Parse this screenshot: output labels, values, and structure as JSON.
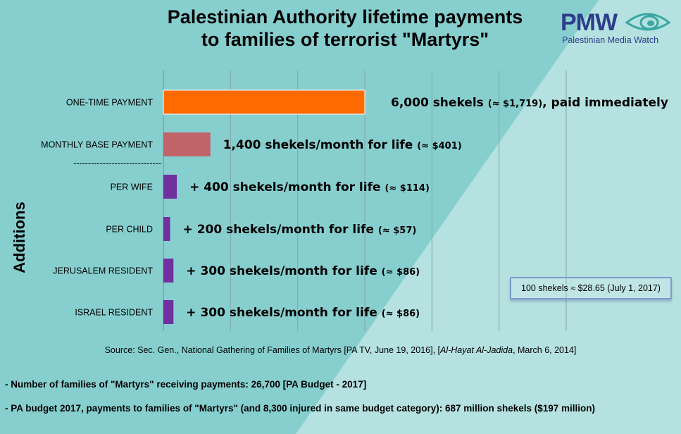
{
  "title": {
    "line1": "Palestinian Authority lifetime payments",
    "line2": "to families of terrorist \"Martyrs\""
  },
  "logo": {
    "name": "PMW",
    "subtitle": "Palestinian Media Watch",
    "icon": "eye-icon"
  },
  "colors": {
    "background_left": "#87cfcf",
    "background_right": "#b5e1e1",
    "one_time": "#ff6a00",
    "monthly_base": "#c0646a",
    "additions": "#7030a0",
    "logo": "#2e3d8c"
  },
  "chart_data": {
    "type": "bar",
    "orientation": "horizontal",
    "categories": [
      "ONE-TIME PAYMENT",
      "MONTHLY BASE PAYMENT",
      "PER WIFE",
      "PER CHILD",
      "JERUSALEM RESIDENT",
      "ISRAEL RESIDENT"
    ],
    "values": [
      6000,
      1400,
      400,
      200,
      300,
      300
    ],
    "labels": [
      {
        "main": "6,000 shekels",
        "small": "(≈ $1,719)",
        "tail": ", paid immediately"
      },
      {
        "main": "1,400 shekels/month for life",
        "small": "(≈ $401)",
        "tail": ""
      },
      {
        "main": "+ 400 shekels/month for life",
        "small": "(≈ $114)",
        "tail": ""
      },
      {
        "main": "+ 200 shekels/month for life",
        "small": "(≈ $57)",
        "tail": ""
      },
      {
        "main": "+ 300 shekels/month for life",
        "small": "(≈ $86)",
        "tail": ""
      },
      {
        "main": "+ 300 shekels/month for life",
        "small": "(≈ $86)",
        "tail": ""
      }
    ],
    "ylabel": "Additions",
    "separator": "------------------------------",
    "xlim": [
      0,
      12000
    ],
    "grid": "vertical",
    "grid_step": 2000
  },
  "conversion_note": "100 shekels ≈ $28.65 (July 1, 2017)",
  "source": {
    "prefix": "Source: Sec. Gen., National Gathering of Families of Martyrs [PA TV, June 19, 2016], [",
    "italic": "Al-Hayat Al-Jadida",
    "suffix": ", March 6, 2014]"
  },
  "notes": [
    "- Number of families of \"Martyrs\" receiving payments: 26,700 [PA Budget - 2017]",
    "- PA budget 2017, payments to families of \"Martyrs\" (and 8,300 injured in same budget category): 687 million shekels ($197 million)"
  ]
}
